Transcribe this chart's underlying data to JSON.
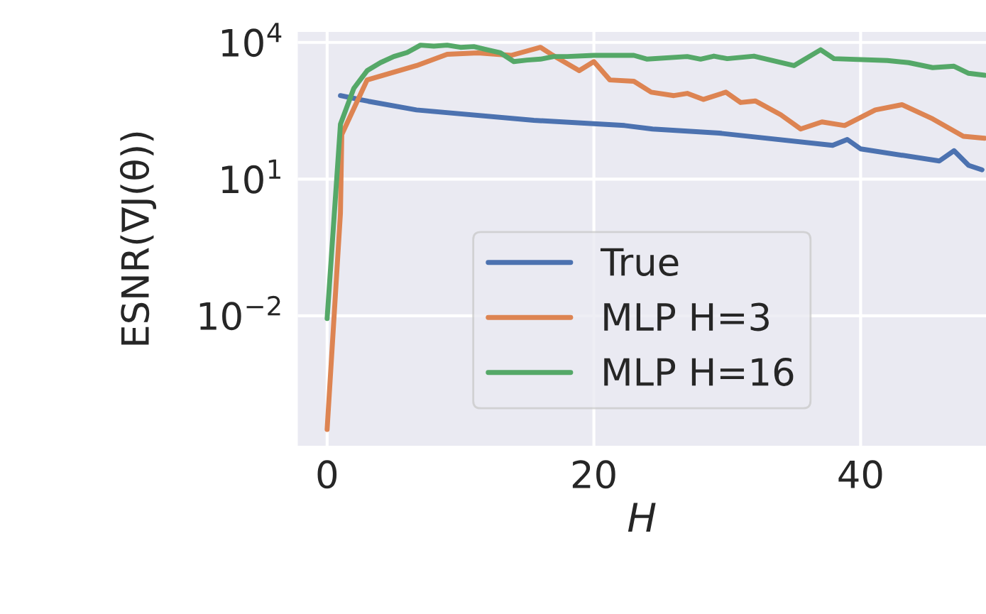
{
  "chart_data": {
    "type": "line",
    "xlabel": "H",
    "ylabel": "ESNR(∇J(θ))",
    "xlim": [
      -2.2,
      49.4
    ],
    "ylim": [
      1.4e-05,
      17000
    ],
    "log": true,
    "xticks": [
      0,
      20,
      40
    ],
    "yticks": [
      {
        "value": 0.01,
        "label": "10$^{−2}$"
      },
      {
        "value": 10,
        "label": "10$^{1}$"
      },
      {
        "value": 10000,
        "label": "10$^{4}$"
      }
    ],
    "grid": true,
    "legend": "lower center",
    "line_style": "solid",
    "series": [
      {
        "name": "True",
        "color": "#4c72b0",
        "x": [
          1,
          3.1,
          6.7,
          15.5,
          22.3,
          24.4,
          29.4,
          37.9,
          39,
          40,
          45.9,
          47,
          48.1,
          49.1
        ],
        "values": [
          680,
          510,
          330,
          195,
          150,
          126,
          102,
          55,
          74,
          46,
          25,
          42,
          20,
          16
        ]
      },
      {
        "name": "MLP H=3",
        "color": "#dd8452",
        "x": [
          0,
          1,
          1.1,
          3,
          6.7,
          9,
          11.3,
          13.8,
          16,
          16.8,
          18.9,
          20,
          21.2,
          23,
          24.3,
          26,
          27,
          28.2,
          29.9,
          31,
          32.1,
          34,
          35.5,
          37.1,
          38.8,
          41.1,
          43.1,
          45.4,
          47.7,
          49.3
        ],
        "values": [
          3.2e-05,
          1.8,
          95,
          1500,
          3100,
          5500,
          5900,
          5200,
          7800,
          5500,
          2400,
          3800,
          1500,
          1400,
          810,
          680,
          760,
          560,
          810,
          480,
          520,
          260,
          126,
          180,
          150,
          330,
          430,
          210,
          87,
          79
        ]
      },
      {
        "name": "MLP H=16",
        "color": "#55a868",
        "x": [
          0,
          1,
          2,
          3,
          4,
          5,
          6,
          7,
          8,
          9,
          10,
          11,
          12,
          13,
          14,
          15,
          16,
          17,
          18,
          20,
          23,
          24,
          27,
          28,
          29,
          30,
          32,
          35,
          37,
          38,
          42,
          43.6,
          45.4,
          47,
          48.1,
          49.3
        ],
        "values": [
          0.0087,
          160,
          980,
          2400,
          3600,
          4900,
          6000,
          8700,
          8300,
          8700,
          7800,
          8100,
          6900,
          5900,
          3800,
          4100,
          4300,
          4900,
          4900,
          5200,
          5200,
          4300,
          4900,
          4300,
          5000,
          4400,
          5000,
          3100,
          6900,
          4400,
          4000,
          3600,
          2800,
          3000,
          2100,
          1900
        ]
      }
    ]
  }
}
